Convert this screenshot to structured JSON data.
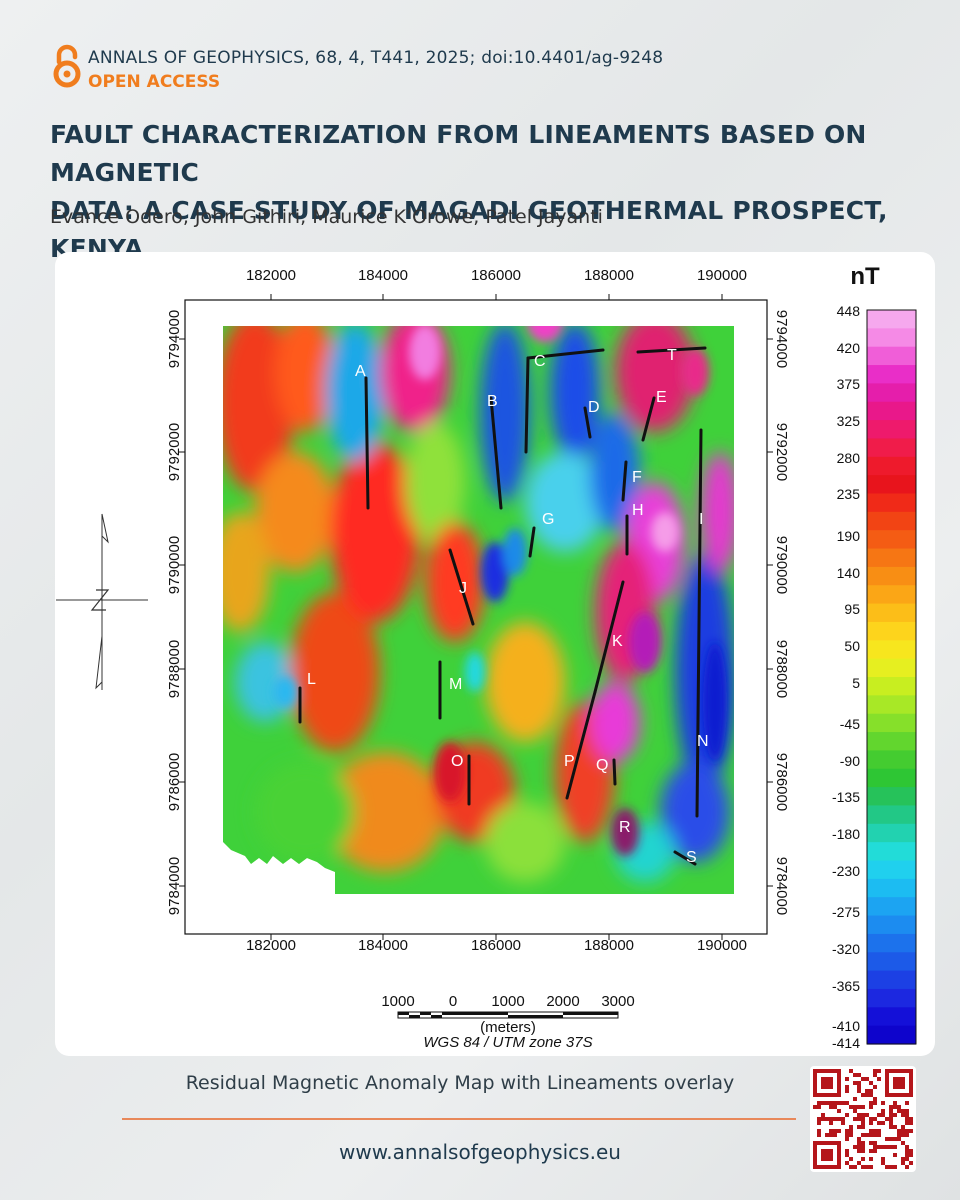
{
  "header": {
    "journal": "ANNALS OF GEOPHYSICS, 68, 4, T441, 2025; doi:10.4401/ag-9248",
    "access": "OPEN ACCESS",
    "icon": "open-access-lock-icon",
    "title_line1": "FAULT CHARACTERIZATION FROM LINEAMENTS BASED ON MAGNETIC",
    "title_line2": "DATA: A CASE STUDY OF MAGADI GEOTHERMAL PROSPECT, KENYA",
    "authors": "Evance Odero, John Githiri, Maurice K’Orowe, Patel Jayanti"
  },
  "map": {
    "x_ticks": [
      "182000",
      "184000",
      "186000",
      "188000",
      "190000"
    ],
    "y_ticks": [
      "9794000",
      "9792000",
      "9790000",
      "9788000",
      "9786000",
      "9784000"
    ],
    "lineament_labels": [
      "A",
      "B",
      "C",
      "D",
      "E",
      "F",
      "G",
      "H",
      "I",
      "J",
      "K",
      "L",
      "M",
      "N",
      "O",
      "P",
      "Q",
      "R",
      "S",
      "T"
    ],
    "colorbar": {
      "unit": "nT",
      "labels": [
        "448",
        "420",
        "375",
        "325",
        "280",
        "235",
        "190",
        "140",
        "95",
        "50",
        "5",
        "-45",
        "-90",
        "-135",
        "-180",
        "-230",
        "-275",
        "-320",
        "-365",
        "-410",
        "-414"
      ]
    },
    "scale_bar": {
      "labels": [
        "1000",
        "0",
        "1000",
        "2000",
        "3000"
      ],
      "unit": "(meters)",
      "projection": "WGS 84 / UTM zone 37S"
    }
  },
  "caption": "Residual Magnetic Anomaly Map with Lineaments overlay",
  "website": "www.annalsofgeophysics.eu",
  "colors": {
    "accent": "#f07d1e",
    "title": "#1f3a4d"
  }
}
